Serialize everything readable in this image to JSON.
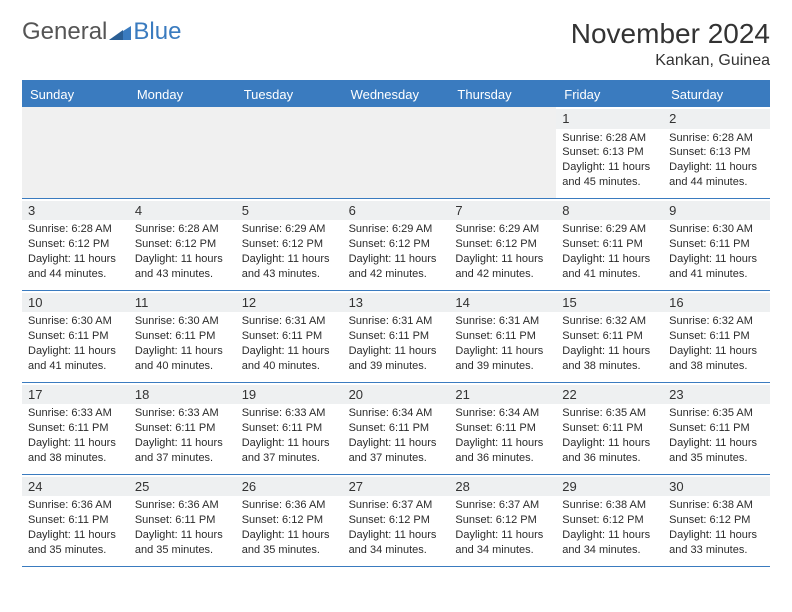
{
  "logo": {
    "word1": "General",
    "word2": "Blue"
  },
  "title": "November 2024",
  "location": "Kankan, Guinea",
  "colors": {
    "accent": "#3a7bbf",
    "header_text": "#ffffff",
    "background": "#ffffff",
    "daynum_bg": "#eef0f1",
    "empty_bg": "#f0f0f0",
    "text": "#2b2b2b"
  },
  "day_names": [
    "Sunday",
    "Monday",
    "Tuesday",
    "Wednesday",
    "Thursday",
    "Friday",
    "Saturday"
  ],
  "weeks": [
    [
      null,
      null,
      null,
      null,
      null,
      {
        "n": "1",
        "sunrise": "Sunrise: 6:28 AM",
        "sunset": "Sunset: 6:13 PM",
        "daylight": "Daylight: 11 hours and 45 minutes."
      },
      {
        "n": "2",
        "sunrise": "Sunrise: 6:28 AM",
        "sunset": "Sunset: 6:13 PM",
        "daylight": "Daylight: 11 hours and 44 minutes."
      }
    ],
    [
      {
        "n": "3",
        "sunrise": "Sunrise: 6:28 AM",
        "sunset": "Sunset: 6:12 PM",
        "daylight": "Daylight: 11 hours and 44 minutes."
      },
      {
        "n": "4",
        "sunrise": "Sunrise: 6:28 AM",
        "sunset": "Sunset: 6:12 PM",
        "daylight": "Daylight: 11 hours and 43 minutes."
      },
      {
        "n": "5",
        "sunrise": "Sunrise: 6:29 AM",
        "sunset": "Sunset: 6:12 PM",
        "daylight": "Daylight: 11 hours and 43 minutes."
      },
      {
        "n": "6",
        "sunrise": "Sunrise: 6:29 AM",
        "sunset": "Sunset: 6:12 PM",
        "daylight": "Daylight: 11 hours and 42 minutes."
      },
      {
        "n": "7",
        "sunrise": "Sunrise: 6:29 AM",
        "sunset": "Sunset: 6:12 PM",
        "daylight": "Daylight: 11 hours and 42 minutes."
      },
      {
        "n": "8",
        "sunrise": "Sunrise: 6:29 AM",
        "sunset": "Sunset: 6:11 PM",
        "daylight": "Daylight: 11 hours and 41 minutes."
      },
      {
        "n": "9",
        "sunrise": "Sunrise: 6:30 AM",
        "sunset": "Sunset: 6:11 PM",
        "daylight": "Daylight: 11 hours and 41 minutes."
      }
    ],
    [
      {
        "n": "10",
        "sunrise": "Sunrise: 6:30 AM",
        "sunset": "Sunset: 6:11 PM",
        "daylight": "Daylight: 11 hours and 41 minutes."
      },
      {
        "n": "11",
        "sunrise": "Sunrise: 6:30 AM",
        "sunset": "Sunset: 6:11 PM",
        "daylight": "Daylight: 11 hours and 40 minutes."
      },
      {
        "n": "12",
        "sunrise": "Sunrise: 6:31 AM",
        "sunset": "Sunset: 6:11 PM",
        "daylight": "Daylight: 11 hours and 40 minutes."
      },
      {
        "n": "13",
        "sunrise": "Sunrise: 6:31 AM",
        "sunset": "Sunset: 6:11 PM",
        "daylight": "Daylight: 11 hours and 39 minutes."
      },
      {
        "n": "14",
        "sunrise": "Sunrise: 6:31 AM",
        "sunset": "Sunset: 6:11 PM",
        "daylight": "Daylight: 11 hours and 39 minutes."
      },
      {
        "n": "15",
        "sunrise": "Sunrise: 6:32 AM",
        "sunset": "Sunset: 6:11 PM",
        "daylight": "Daylight: 11 hours and 38 minutes."
      },
      {
        "n": "16",
        "sunrise": "Sunrise: 6:32 AM",
        "sunset": "Sunset: 6:11 PM",
        "daylight": "Daylight: 11 hours and 38 minutes."
      }
    ],
    [
      {
        "n": "17",
        "sunrise": "Sunrise: 6:33 AM",
        "sunset": "Sunset: 6:11 PM",
        "daylight": "Daylight: 11 hours and 38 minutes."
      },
      {
        "n": "18",
        "sunrise": "Sunrise: 6:33 AM",
        "sunset": "Sunset: 6:11 PM",
        "daylight": "Daylight: 11 hours and 37 minutes."
      },
      {
        "n": "19",
        "sunrise": "Sunrise: 6:33 AM",
        "sunset": "Sunset: 6:11 PM",
        "daylight": "Daylight: 11 hours and 37 minutes."
      },
      {
        "n": "20",
        "sunrise": "Sunrise: 6:34 AM",
        "sunset": "Sunset: 6:11 PM",
        "daylight": "Daylight: 11 hours and 37 minutes."
      },
      {
        "n": "21",
        "sunrise": "Sunrise: 6:34 AM",
        "sunset": "Sunset: 6:11 PM",
        "daylight": "Daylight: 11 hours and 36 minutes."
      },
      {
        "n": "22",
        "sunrise": "Sunrise: 6:35 AM",
        "sunset": "Sunset: 6:11 PM",
        "daylight": "Daylight: 11 hours and 36 minutes."
      },
      {
        "n": "23",
        "sunrise": "Sunrise: 6:35 AM",
        "sunset": "Sunset: 6:11 PM",
        "daylight": "Daylight: 11 hours and 35 minutes."
      }
    ],
    [
      {
        "n": "24",
        "sunrise": "Sunrise: 6:36 AM",
        "sunset": "Sunset: 6:11 PM",
        "daylight": "Daylight: 11 hours and 35 minutes."
      },
      {
        "n": "25",
        "sunrise": "Sunrise: 6:36 AM",
        "sunset": "Sunset: 6:11 PM",
        "daylight": "Daylight: 11 hours and 35 minutes."
      },
      {
        "n": "26",
        "sunrise": "Sunrise: 6:36 AM",
        "sunset": "Sunset: 6:12 PM",
        "daylight": "Daylight: 11 hours and 35 minutes."
      },
      {
        "n": "27",
        "sunrise": "Sunrise: 6:37 AM",
        "sunset": "Sunset: 6:12 PM",
        "daylight": "Daylight: 11 hours and 34 minutes."
      },
      {
        "n": "28",
        "sunrise": "Sunrise: 6:37 AM",
        "sunset": "Sunset: 6:12 PM",
        "daylight": "Daylight: 11 hours and 34 minutes."
      },
      {
        "n": "29",
        "sunrise": "Sunrise: 6:38 AM",
        "sunset": "Sunset: 6:12 PM",
        "daylight": "Daylight: 11 hours and 34 minutes."
      },
      {
        "n": "30",
        "sunrise": "Sunrise: 6:38 AM",
        "sunset": "Sunset: 6:12 PM",
        "daylight": "Daylight: 11 hours and 33 minutes."
      }
    ]
  ]
}
